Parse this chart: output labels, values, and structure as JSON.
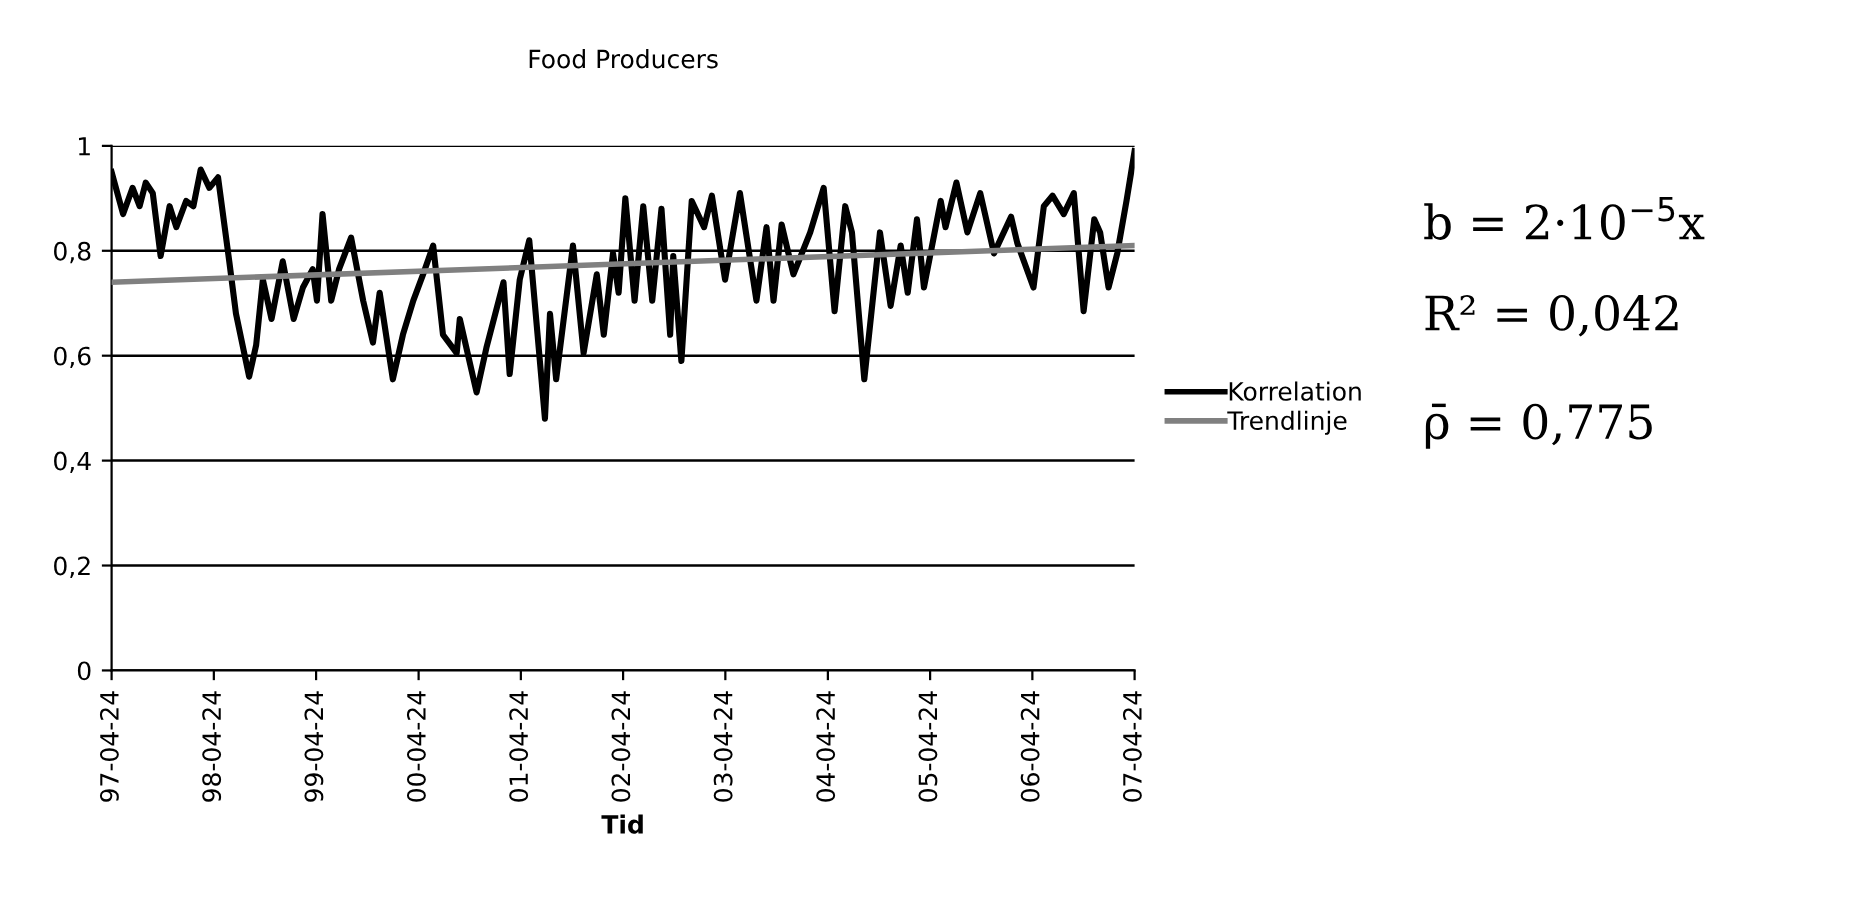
{
  "chart_data": {
    "type": "line",
    "title": "Food Producers",
    "xlabel": "Tid",
    "xlim": [
      "1997-04-24",
      "2007-04-24"
    ],
    "xticks": [
      {
        "value": "1997-04-24",
        "label": "97-04-24"
      },
      {
        "value": "1998-04-24",
        "label": "98-04-24"
      },
      {
        "value": "1999-04-24",
        "label": "99-04-24"
      },
      {
        "value": "2000-04-24",
        "label": "00-04-24"
      },
      {
        "value": "2001-04-24",
        "label": "01-04-24"
      },
      {
        "value": "2002-04-24",
        "label": "02-04-24"
      },
      {
        "value": "2003-04-24",
        "label": "03-04-24"
      },
      {
        "value": "2004-04-24",
        "label": "04-04-24"
      },
      {
        "value": "2005-04-24",
        "label": "05-04-24"
      },
      {
        "value": "2006-04-24",
        "label": "06-04-24"
      },
      {
        "value": "2007-04-24",
        "label": "07-04-24"
      }
    ],
    "ylim": [
      0,
      1
    ],
    "yticks": [
      0,
      {
        "value": 0.2,
        "label": "0,2"
      },
      {
        "value": 0.4,
        "label": "0,4"
      },
      {
        "value": 0.6,
        "label": "0,6"
      },
      {
        "value": 0.8,
        "label": "0,8"
      },
      1
    ],
    "grid": "y",
    "legend": "right",
    "marker": "none",
    "line_style": "solid",
    "annotations": [
      "b = 2·10$^{−5}$x",
      "R² = 0,042",
      "ρ̄ = 0,775"
    ],
    "series": [
      {
        "name": "Korrelation",
        "color": "#000000",
        "x": [
          "1997-04-24",
          "1997-06-04",
          "1997-07-08",
          "1997-08-02",
          "1997-08-24",
          "1997-09-18",
          "1997-10-16",
          "1997-11-17",
          "1997-12-11",
          "1998-01-15",
          "1998-02-10",
          "1998-03-08",
          "1998-04-08",
          "1998-05-09",
          "1998-06-18",
          "1998-07-12",
          "1998-08-28",
          "1998-09-22",
          "1998-10-16",
          "1998-11-16",
          "1998-12-26",
          "1999-02-03",
          "1999-03-08",
          "1999-04-12",
          "1999-04-27",
          "1999-05-17",
          "1999-06-17",
          "1999-07-15",
          "1999-08-27",
          "1999-10-09",
          "1999-11-13",
          "1999-12-07",
          "2000-01-23",
          "2000-02-28",
          "2000-04-05",
          "2000-05-10",
          "2000-06-15",
          "2000-07-20",
          "2000-09-07",
          "2000-09-18",
          "2000-11-17",
          "2000-12-22",
          "2001-02-21",
          "2001-03-15",
          "2001-04-20",
          "2001-05-24",
          "2001-07-19",
          "2001-08-06",
          "2001-08-28",
          "2001-10-27",
          "2001-12-04",
          "2002-01-20",
          "2002-02-14",
          "2002-03-19",
          "2002-04-08",
          "2002-05-02",
          "2002-06-04",
          "2002-07-05",
          "2002-08-06",
          "2002-09-08",
          "2002-10-09",
          "2002-10-20",
          "2002-11-18",
          "2002-12-25",
          "2003-02-07",
          "2003-03-07",
          "2003-04-23",
          "2003-06-15",
          "2003-08-13",
          "2003-09-18",
          "2003-10-13",
          "2003-11-11",
          "2003-12-23",
          "2004-02-21",
          "2004-04-09",
          "2004-05-18",
          "2004-06-25",
          "2004-07-19",
          "2004-09-01",
          "2004-10-27",
          "2004-12-04",
          "2005-01-09",
          "2005-02-03",
          "2005-03-08",
          "2005-04-02",
          "2005-06-01",
          "2005-06-18",
          "2005-07-27",
          "2005-09-04",
          "2005-10-20",
          "2005-12-08",
          "2006-02-07",
          "2006-03-01",
          "2006-04-28",
          "2006-06-04",
          "2006-07-05",
          "2006-08-14",
          "2006-09-19",
          "2006-10-24",
          "2006-12-01",
          "2006-12-22",
          "2007-01-21",
          "2007-02-21",
          "2007-03-26",
          "2007-04-24"
        ],
        "values": [
          0.95,
          0.87,
          0.92,
          0.885,
          0.93,
          0.91,
          0.79,
          0.885,
          0.845,
          0.895,
          0.885,
          0.955,
          0.92,
          0.94,
          0.78,
          0.68,
          0.56,
          0.62,
          0.745,
          0.67,
          0.78,
          0.67,
          0.73,
          0.765,
          0.705,
          0.87,
          0.705,
          0.765,
          0.825,
          0.705,
          0.625,
          0.72,
          0.555,
          0.64,
          0.705,
          0.755,
          0.81,
          0.64,
          0.605,
          0.67,
          0.53,
          0.615,
          0.74,
          0.565,
          0.745,
          0.82,
          0.48,
          0.68,
          0.555,
          0.81,
          0.605,
          0.755,
          0.64,
          0.795,
          0.72,
          0.9,
          0.705,
          0.885,
          0.705,
          0.88,
          0.64,
          0.79,
          0.59,
          0.895,
          0.845,
          0.905,
          0.745,
          0.91,
          0.705,
          0.845,
          0.705,
          0.85,
          0.755,
          0.835,
          0.92,
          0.685,
          0.885,
          0.835,
          0.555,
          0.835,
          0.695,
          0.81,
          0.72,
          0.86,
          0.73,
          0.895,
          0.845,
          0.93,
          0.835,
          0.91,
          0.795,
          0.865,
          0.815,
          0.73,
          0.885,
          0.905,
          0.87,
          0.91,
          0.685,
          0.86,
          0.835,
          0.73,
          0.795,
          0.895,
          0.99
        ]
      },
      {
        "name": "Trendlinje",
        "color": "#808080",
        "x": [
          "1997-04-24",
          "2007-04-24"
        ],
        "values": [
          0.74,
          0.81
        ]
      }
    ]
  }
}
